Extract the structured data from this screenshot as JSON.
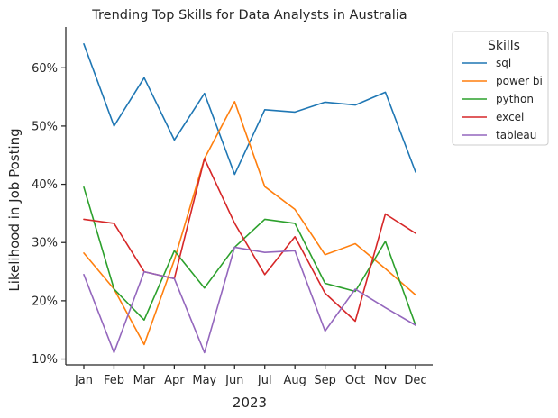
{
  "chart_data": {
    "type": "line",
    "title": "Trending Top Skills for Data Analysts in Australia",
    "xlabel": "2023",
    "ylabel": "Likelihood in Job Posting",
    "categories": [
      "Jan",
      "Feb",
      "Mar",
      "Apr",
      "May",
      "Jun",
      "Jul",
      "Aug",
      "Sep",
      "Oct",
      "Nov",
      "Dec"
    ],
    "ylim": [
      9,
      67
    ],
    "yticks": [
      10,
      20,
      30,
      40,
      50,
      60
    ],
    "ytick_labels": [
      "10%",
      "20%",
      "30%",
      "40%",
      "50%",
      "60%"
    ],
    "grid": false,
    "legend": {
      "title": "Skills",
      "placement": "outside-top-right"
    },
    "series": [
      {
        "name": "sql",
        "color": "#1f77b4",
        "values": [
          64.1,
          50.0,
          58.3,
          47.6,
          55.6,
          41.7,
          52.8,
          52.4,
          54.1,
          53.6,
          55.8,
          42.1
        ]
      },
      {
        "name": "power bi",
        "color": "#ff7f0e",
        "values": [
          28.2,
          22.0,
          12.5,
          27.0,
          44.4,
          54.2,
          39.6,
          35.7,
          27.9,
          29.8,
          25.5,
          21.0
        ]
      },
      {
        "name": "python",
        "color": "#2ca02c",
        "values": [
          39.5,
          22.0,
          16.7,
          28.6,
          22.2,
          29.2,
          34.0,
          33.3,
          23.0,
          21.6,
          30.2,
          15.8
        ]
      },
      {
        "name": "excel",
        "color": "#d62728",
        "values": [
          34.0,
          33.3,
          25.0,
          23.8,
          44.4,
          33.3,
          24.5,
          31.0,
          21.3,
          16.5,
          34.9,
          31.6
        ]
      },
      {
        "name": "tableau",
        "color": "#9467bd",
        "values": [
          24.5,
          11.1,
          25.0,
          23.8,
          11.1,
          29.2,
          28.3,
          28.6,
          14.8,
          22.0,
          18.8,
          15.8
        ]
      }
    ]
  }
}
